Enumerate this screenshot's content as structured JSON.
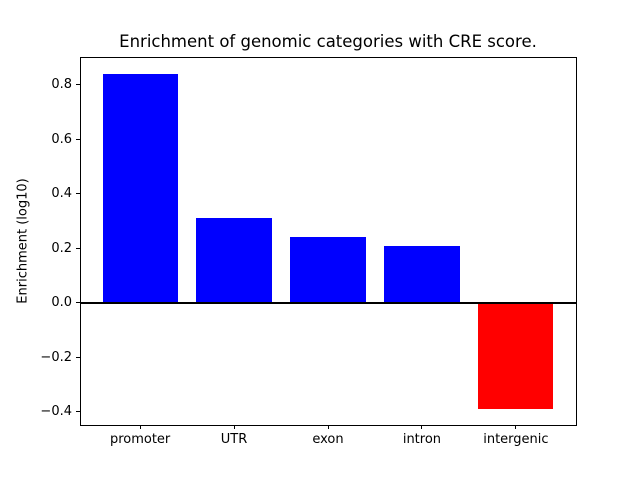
{
  "chart_data": {
    "type": "bar",
    "title": "Enrichment of genomic categories with CRE score.",
    "xlabel": "",
    "ylabel": "Enrichment (log10)",
    "categories": [
      "promoter",
      "UTR",
      "exon",
      "intron",
      "intergenic"
    ],
    "values": [
      0.84,
      0.31,
      0.24,
      0.21,
      -0.39
    ],
    "bar_colors": [
      "#0000ff",
      "#0000ff",
      "#0000ff",
      "#0000ff",
      "#ff0000"
    ],
    "positive_color": "#0000ff",
    "negative_color": "#ff0000",
    "yticks": [
      0.8,
      0.6,
      0.4,
      0.2,
      0.0,
      -0.2,
      -0.4
    ],
    "ytick_labels": [
      "0.8",
      "0.6",
      "0.4",
      "0.2",
      "0.0",
      "−0.2",
      "−0.4"
    ],
    "ylim": [
      -0.448,
      0.901
    ],
    "x_margin_units": 0.64,
    "bar_width_fraction": 0.8,
    "grid": false,
    "legend": null,
    "zero_line": {
      "value": 0.0,
      "color": "#000000",
      "thickness_px": 2
    },
    "axis_color": "#000000",
    "background_color": "#ffffff"
  }
}
